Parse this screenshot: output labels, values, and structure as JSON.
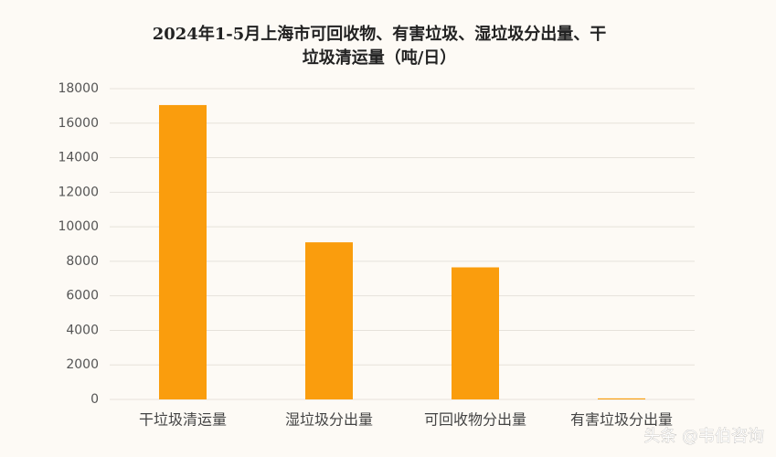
{
  "chart_data": {
    "type": "bar",
    "title": [
      "2024年1-5月上海市可回收物、有害垃圾、湿垃圾分出量、干",
      "垃圾清运量（吨/日）"
    ],
    "categories": [
      "干垃圾清运量",
      "湿垃圾分出量",
      "可回收物分出量",
      "有害垃圾分出量"
    ],
    "values": [
      17050,
      9100,
      7650,
      60
    ],
    "color": "#fa9d0d",
    "ylim": [
      0,
      18000
    ],
    "yticks": [
      0,
      2000,
      4000,
      6000,
      8000,
      10000,
      12000,
      14000,
      16000,
      18000
    ],
    "grid": true
  },
  "watermark": "头条 @韦伯咨询"
}
